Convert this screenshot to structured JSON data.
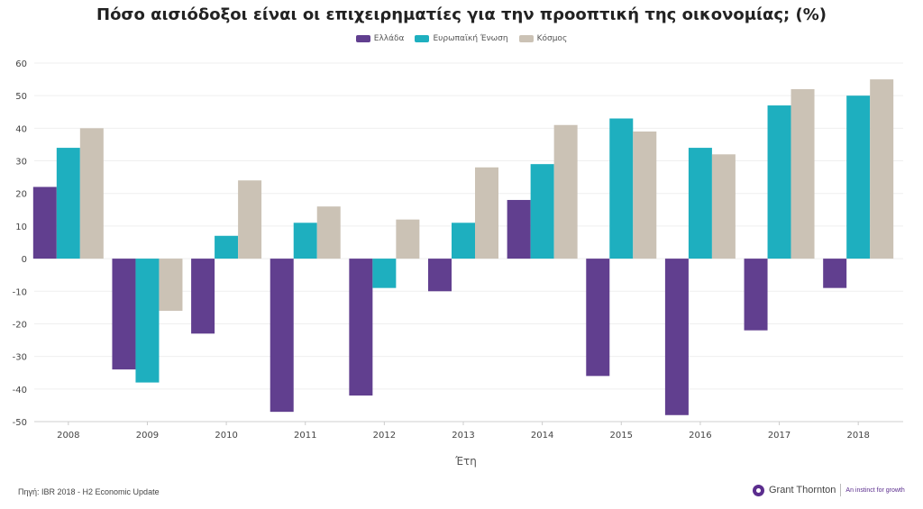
{
  "chart_data": {
    "type": "bar",
    "title": "Πόσο αισιόδοξοι είναι οι επιχειρηματίες για την προοπτική της οικονομίας; (%)",
    "xlabel": "Έτη",
    "ylabel": "",
    "categories": [
      "2008",
      "2009",
      "2010",
      "2011",
      "2012",
      "2013",
      "2014",
      "2015",
      "2016",
      "2017",
      "2018"
    ],
    "series": [
      {
        "name": "Ελλάδα",
        "color": "#613f8f",
        "values": [
          22,
          -34,
          -23,
          -47,
          -42,
          -10,
          18,
          -36,
          -48,
          -22,
          -9
        ]
      },
      {
        "name": "Ευρωπαϊκή Ένωση",
        "color": "#1eafbf",
        "values": [
          34,
          -38,
          7,
          11,
          -9,
          11,
          29,
          43,
          34,
          47,
          50
        ]
      },
      {
        "name": "Κόσμος",
        "color": "#cbc2b5",
        "values": [
          40,
          -16,
          24,
          16,
          12,
          28,
          41,
          39,
          32,
          52,
          55
        ]
      }
    ],
    "ylim": [
      -50,
      60
    ],
    "yticks": [
      60,
      50,
      40,
      30,
      20,
      10,
      0,
      -10,
      -20,
      -30,
      -40,
      -50
    ],
    "grid": true,
    "legend_position": "top-center"
  },
  "footer": {
    "source": "Πηγή: IBR 2018 - H2 Economic Update",
    "brand_name": "Grant Thornton",
    "brand_tagline": "An instinct for growth"
  }
}
